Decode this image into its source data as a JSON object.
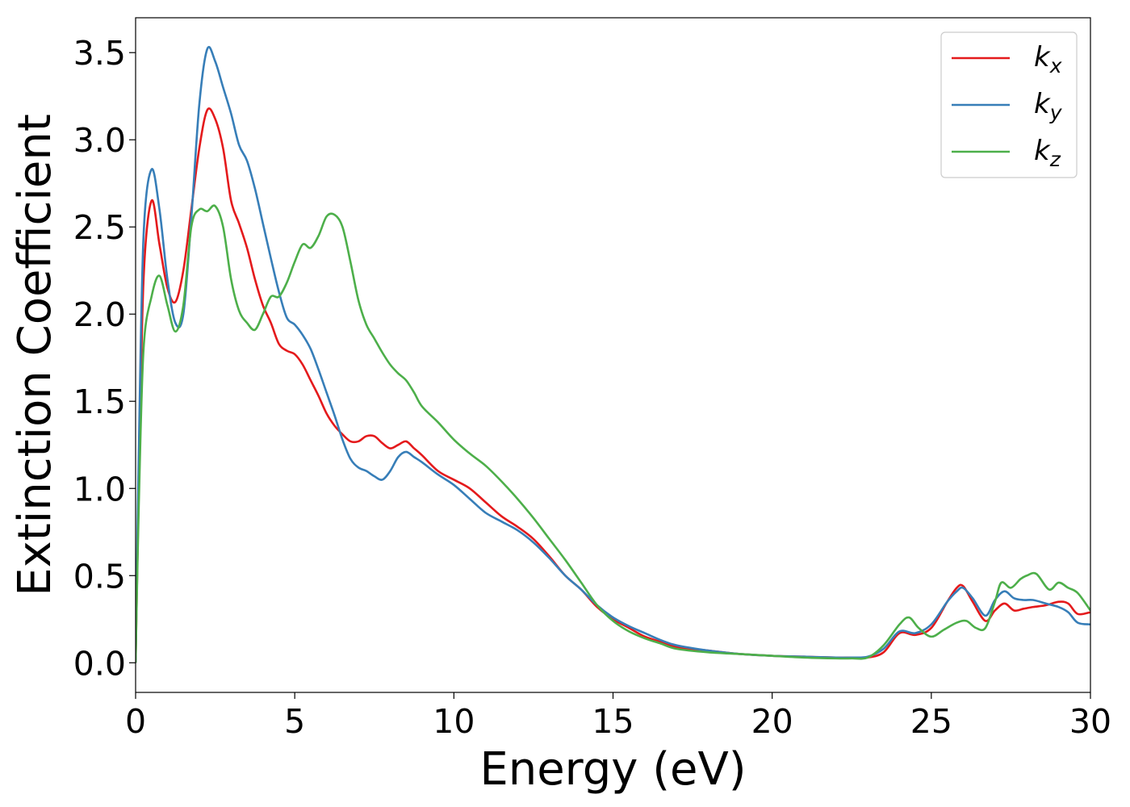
{
  "chart_data": {
    "type": "line",
    "title": "",
    "xlabel": "Energy (eV)",
    "ylabel": "Extinction Coefficient",
    "xlim": [
      0,
      30
    ],
    "ylim": [
      -0.17,
      3.7
    ],
    "xticks": [
      0,
      5,
      10,
      15,
      20,
      25,
      30
    ],
    "yticks": [
      0.0,
      0.5,
      1.0,
      1.5,
      2.0,
      2.5,
      3.0,
      3.5
    ],
    "xtick_labels": [
      "0",
      "5",
      "10",
      "15",
      "20",
      "25",
      "30"
    ],
    "ytick_labels": [
      "0.0",
      "0.5",
      "1.0",
      "1.5",
      "2.0",
      "2.5",
      "3.0",
      "3.5"
    ],
    "grid": false,
    "legend_position": "top-right",
    "series": [
      {
        "name": "k",
        "subscript": "x",
        "color": "#e41a1c",
        "x": [
          0,
          0.1,
          0.25,
          0.5,
          0.75,
          1.0,
          1.25,
          1.5,
          1.75,
          2.0,
          2.25,
          2.5,
          2.75,
          3.0,
          3.25,
          3.5,
          3.75,
          4.0,
          4.25,
          4.5,
          4.75,
          5.0,
          5.25,
          5.5,
          5.75,
          6.0,
          6.25,
          6.5,
          6.75,
          7.0,
          7.25,
          7.5,
          7.75,
          8.0,
          8.25,
          8.5,
          8.75,
          9.0,
          9.5,
          10.0,
          10.5,
          11.0,
          11.5,
          12.0,
          12.5,
          13.0,
          13.5,
          14.0,
          14.5,
          15.0,
          15.5,
          16.0,
          16.5,
          17.0,
          18.0,
          19.0,
          20.0,
          21.0,
          22.0,
          22.5,
          23.0,
          23.5,
          24.0,
          24.5,
          25.0,
          25.5,
          25.8,
          26.0,
          26.3,
          26.7,
          27.0,
          27.3,
          27.6,
          27.9,
          28.2,
          28.6,
          29.0,
          29.3,
          29.6,
          30.0
        ],
        "y": [
          0,
          1.0,
          2.2,
          2.65,
          2.4,
          2.15,
          2.07,
          2.25,
          2.6,
          2.95,
          3.17,
          3.12,
          2.95,
          2.65,
          2.52,
          2.38,
          2.2,
          2.05,
          1.95,
          1.83,
          1.79,
          1.77,
          1.71,
          1.62,
          1.53,
          1.43,
          1.36,
          1.31,
          1.27,
          1.27,
          1.3,
          1.3,
          1.26,
          1.23,
          1.25,
          1.27,
          1.23,
          1.19,
          1.1,
          1.05,
          1.0,
          0.92,
          0.84,
          0.78,
          0.71,
          0.61,
          0.5,
          0.42,
          0.32,
          0.25,
          0.2,
          0.15,
          0.12,
          0.09,
          0.07,
          0.05,
          0.04,
          0.035,
          0.03,
          0.03,
          0.03,
          0.06,
          0.17,
          0.16,
          0.2,
          0.35,
          0.43,
          0.44,
          0.35,
          0.24,
          0.3,
          0.34,
          0.3,
          0.31,
          0.32,
          0.33,
          0.35,
          0.34,
          0.28,
          0.29
        ]
      },
      {
        "name": "k",
        "subscript": "y",
        "color": "#377eb8",
        "x": [
          0,
          0.1,
          0.25,
          0.5,
          0.75,
          1.0,
          1.25,
          1.5,
          1.75,
          2.0,
          2.25,
          2.5,
          2.75,
          3.0,
          3.25,
          3.5,
          3.75,
          4.0,
          4.25,
          4.5,
          4.75,
          5.0,
          5.25,
          5.5,
          5.75,
          6.0,
          6.25,
          6.5,
          6.75,
          7.0,
          7.25,
          7.5,
          7.75,
          8.0,
          8.25,
          8.5,
          8.75,
          9.0,
          9.5,
          10.0,
          10.5,
          11.0,
          11.5,
          12.0,
          12.5,
          13.0,
          13.5,
          14.0,
          14.5,
          15.0,
          15.5,
          16.0,
          16.5,
          17.0,
          18.0,
          19.0,
          20.0,
          21.0,
          22.0,
          22.5,
          23.0,
          23.5,
          24.0,
          24.5,
          25.0,
          25.5,
          25.8,
          26.0,
          26.3,
          26.7,
          27.0,
          27.3,
          27.6,
          27.9,
          28.2,
          28.6,
          29.0,
          29.3,
          29.6,
          30.0
        ],
        "y": [
          0,
          1.2,
          2.45,
          2.83,
          2.6,
          2.2,
          1.95,
          2.0,
          2.55,
          3.2,
          3.52,
          3.45,
          3.3,
          3.15,
          2.97,
          2.88,
          2.72,
          2.52,
          2.32,
          2.13,
          1.98,
          1.94,
          1.88,
          1.8,
          1.68,
          1.55,
          1.42,
          1.28,
          1.17,
          1.12,
          1.1,
          1.07,
          1.05,
          1.1,
          1.18,
          1.21,
          1.18,
          1.15,
          1.08,
          1.02,
          0.94,
          0.86,
          0.81,
          0.76,
          0.69,
          0.6,
          0.5,
          0.42,
          0.33,
          0.26,
          0.21,
          0.17,
          0.13,
          0.1,
          0.07,
          0.05,
          0.04,
          0.035,
          0.03,
          0.03,
          0.035,
          0.08,
          0.18,
          0.17,
          0.22,
          0.35,
          0.41,
          0.43,
          0.37,
          0.27,
          0.36,
          0.41,
          0.37,
          0.36,
          0.36,
          0.34,
          0.32,
          0.29,
          0.23,
          0.22
        ]
      },
      {
        "name": "k",
        "subscript": "z",
        "color": "#4daf4a",
        "x": [
          0,
          0.1,
          0.25,
          0.5,
          0.75,
          1.0,
          1.25,
          1.5,
          1.75,
          2.0,
          2.25,
          2.5,
          2.75,
          3.0,
          3.25,
          3.5,
          3.75,
          4.0,
          4.25,
          4.5,
          4.75,
          5.0,
          5.25,
          5.5,
          5.75,
          6.0,
          6.25,
          6.5,
          6.75,
          7.0,
          7.25,
          7.5,
          7.75,
          8.0,
          8.25,
          8.5,
          8.75,
          9.0,
          9.5,
          10.0,
          10.5,
          11.0,
          11.5,
          12.0,
          12.5,
          13.0,
          13.5,
          14.0,
          14.5,
          15.0,
          15.5,
          16.0,
          16.5,
          17.0,
          18.0,
          19.0,
          20.0,
          21.0,
          22.0,
          22.5,
          23.0,
          23.5,
          24.0,
          24.3,
          24.6,
          25.0,
          25.4,
          25.8,
          26.1,
          26.4,
          26.7,
          27.0,
          27.2,
          27.5,
          27.8,
          28.0,
          28.3,
          28.7,
          29.0,
          29.3,
          29.6,
          30.0
        ],
        "y": [
          0,
          0.9,
          1.8,
          2.1,
          2.22,
          2.05,
          1.9,
          2.05,
          2.5,
          2.6,
          2.59,
          2.62,
          2.5,
          2.2,
          2.02,
          1.95,
          1.91,
          2.0,
          2.1,
          2.1,
          2.18,
          2.3,
          2.4,
          2.38,
          2.45,
          2.56,
          2.57,
          2.5,
          2.3,
          2.08,
          1.94,
          1.86,
          1.78,
          1.71,
          1.66,
          1.62,
          1.55,
          1.47,
          1.38,
          1.28,
          1.2,
          1.13,
          1.04,
          0.94,
          0.83,
          0.71,
          0.59,
          0.46,
          0.33,
          0.24,
          0.18,
          0.14,
          0.11,
          0.08,
          0.06,
          0.05,
          0.04,
          0.03,
          0.025,
          0.025,
          0.03,
          0.1,
          0.22,
          0.26,
          0.2,
          0.15,
          0.19,
          0.23,
          0.24,
          0.2,
          0.2,
          0.35,
          0.46,
          0.43,
          0.48,
          0.5,
          0.51,
          0.42,
          0.46,
          0.43,
          0.4,
          0.3
        ]
      }
    ]
  }
}
